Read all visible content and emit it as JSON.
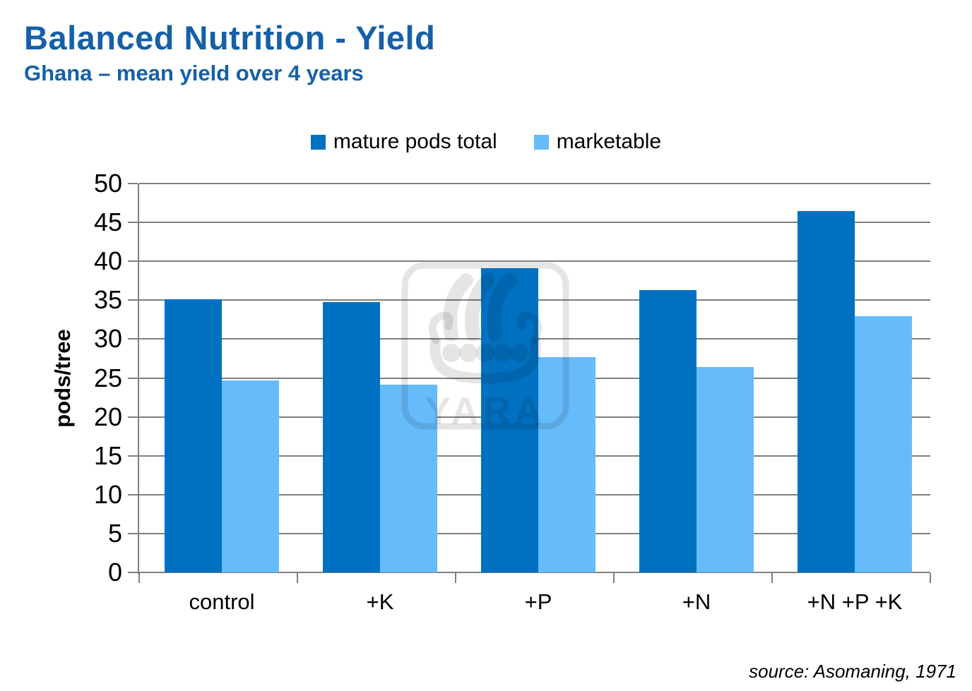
{
  "header": {
    "title": "Balanced Nutrition - Yield",
    "subtitle": "Ghana – mean yield over 4 years",
    "title_color": "#1560A8"
  },
  "chart_data": {
    "type": "bar",
    "title": "Balanced Nutrition - Yield",
    "subtitle": "Ghana – mean yield over 4 years",
    "ylabel": "pods/tree",
    "xlabel": "",
    "ylim": [
      0,
      50
    ],
    "ytick_step": 5,
    "grid": true,
    "legend_position": "top",
    "categories": [
      "control",
      "+K",
      "+P",
      "+N",
      "+N +P +K"
    ],
    "series": [
      {
        "name": "mature pods total",
        "color": "#0071C1",
        "values": [
          35.1,
          34.8,
          39.1,
          36.3,
          46.5
        ]
      },
      {
        "name": "marketable",
        "color": "#66BBFB",
        "values": [
          24.7,
          24.1,
          27.7,
          26.4,
          32.9
        ]
      }
    ],
    "source": "source: Asomaning, 1971",
    "gridline_color": "#808080",
    "watermark": "YARA"
  }
}
